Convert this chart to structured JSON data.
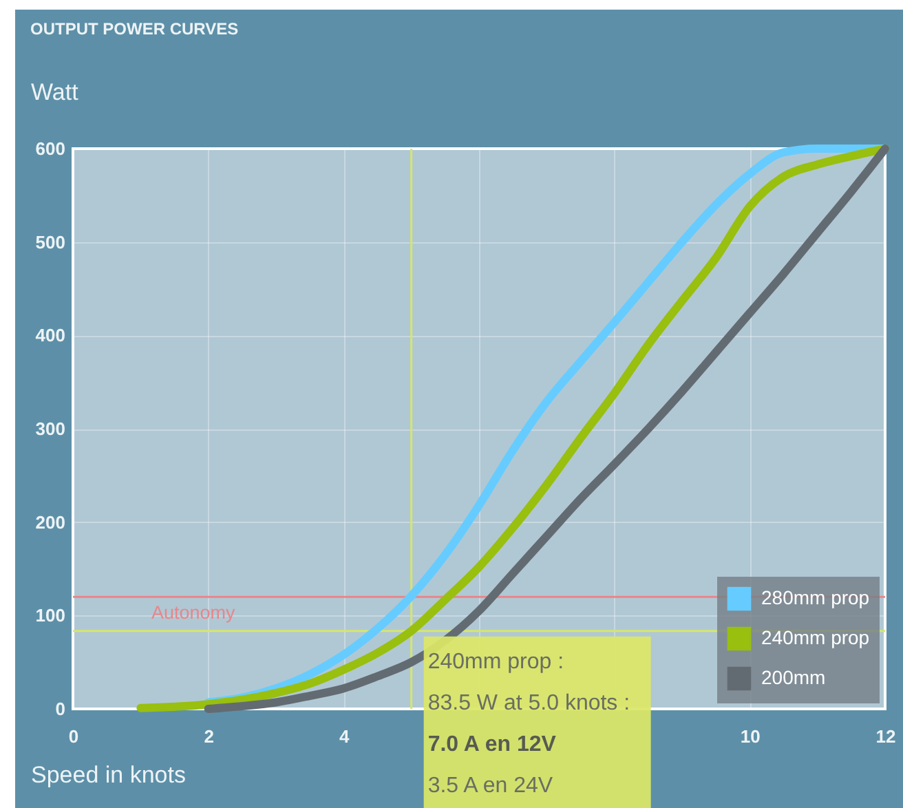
{
  "chart_data": {
    "type": "line",
    "title": "OUTPUT POWER CURVES",
    "xlabel": "Speed in knots",
    "ylabel": "Watt",
    "xlim": [
      0,
      12
    ],
    "xticks": [
      0,
      2,
      4,
      {
        "value": 6,
        "label": null
      },
      {
        "value": 8,
        "label": null
      },
      10,
      12
    ],
    "ylim": [
      0,
      600
    ],
    "yticks": [
      0,
      100,
      200,
      300,
      400,
      500,
      600
    ],
    "grid": true,
    "legend": "bottom right",
    "line_style": "solid",
    "series": [
      {
        "name": "280mm prop",
        "color": "#66ccff",
        "x": [
          2,
          2.5,
          3,
          3.5,
          4,
          4.5,
          5,
          5.5,
          6,
          6.5,
          7,
          7.5,
          8,
          8.5,
          9,
          9.5,
          10,
          10.5,
          11,
          12
        ],
        "values": [
          7,
          12,
          22,
          37,
          58,
          86,
          121,
          165,
          218,
          277,
          329,
          372,
          414,
          457,
          500,
          540,
          573,
          596,
          600,
          600
        ]
      },
      {
        "name": "240mm prop",
        "color": "#99bf0f",
        "x": [
          1,
          2,
          3,
          3.5,
          4,
          4.5,
          5,
          5.5,
          6,
          6.5,
          7,
          7.5,
          8,
          8.5,
          9,
          9.5,
          10,
          10.5,
          11,
          11.5,
          12
        ],
        "values": [
          1,
          5,
          17,
          27,
          42,
          60,
          83.5,
          117,
          152,
          194,
          240,
          290,
          338,
          390,
          437,
          483,
          538,
          570,
          583,
          592,
          600
        ]
      },
      {
        "name": "200mm",
        "color": "#636b72",
        "x": [
          2,
          2.5,
          3,
          3.5,
          4,
          4.5,
          5,
          6,
          6.5,
          7,
          7.5,
          8,
          8.5,
          9,
          9.5,
          10,
          10.5,
          11,
          11.5,
          12
        ],
        "values": [
          0,
          3,
          7,
          14,
          22,
          35,
          50,
          105,
          145,
          185,
          225,
          262,
          300,
          340,
          382,
          424,
          466,
          510,
          554,
          600
        ]
      }
    ],
    "ref_lines": [
      {
        "axis": "y",
        "value": 120,
        "label": "Autonomy",
        "color": "#e8868c"
      },
      {
        "axis": "x",
        "value": 5,
        "color": "#d6e66c"
      },
      {
        "axis": "y",
        "value": 83.5,
        "color": "#d6e66c"
      }
    ],
    "annotations": [
      {
        "text": "240mm prop :",
        "x": 5,
        "y": 83.5
      },
      {
        "text": "83.5 W at 5.0 knots :",
        "x": 5,
        "y": 83.5
      },
      "7.0 A en 12V",
      "3.5 A en 24V"
    ]
  }
}
